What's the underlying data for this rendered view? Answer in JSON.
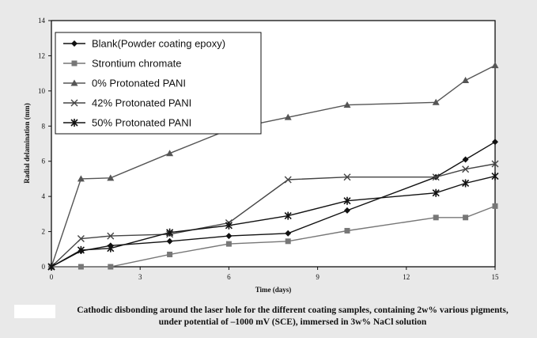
{
  "chart_data": {
    "type": "line",
    "title": "",
    "xlabel": "Time (days)",
    "ylabel": "Radial delamination (mm)",
    "xlim": [
      0,
      15
    ],
    "ylim": [
      0,
      14
    ],
    "xticks": [
      0,
      3,
      6,
      9,
      12,
      15
    ],
    "yticks": [
      0,
      2,
      4,
      6,
      8,
      10,
      12,
      14
    ],
    "grid": false,
    "legend_position": "top-left",
    "series": [
      {
        "name": "Blank(Powder coating epoxy)",
        "marker": "diamond",
        "color": "#111111",
        "x": [
          0,
          1,
          2,
          4,
          6,
          8,
          10,
          13,
          14,
          15
        ],
        "y": [
          0,
          0.9,
          1.2,
          1.45,
          1.75,
          1.9,
          3.2,
          5.1,
          6.1,
          7.1
        ]
      },
      {
        "name": "Strontium chromate",
        "marker": "square",
        "color": "#777777",
        "x": [
          0,
          1,
          2,
          4,
          6,
          8,
          10,
          13,
          14,
          15
        ],
        "y": [
          0,
          0,
          0,
          0.7,
          1.3,
          1.45,
          2.05,
          2.8,
          2.8,
          3.45
        ]
      },
      {
        "name": "0% Protonated PANI",
        "marker": "triangle",
        "color": "#555555",
        "x": [
          0,
          1,
          2,
          4,
          6,
          8,
          10,
          13,
          14,
          15
        ],
        "y": [
          0,
          5.0,
          5.05,
          6.45,
          7.8,
          8.5,
          9.2,
          9.35,
          10.6,
          11.45
        ]
      },
      {
        "name": "42% Protonated PANI",
        "marker": "x",
        "color": "#444444",
        "x": [
          0,
          1,
          2,
          4,
          6,
          8,
          10,
          13,
          14,
          15
        ],
        "y": [
          0,
          1.6,
          1.75,
          1.85,
          2.5,
          4.95,
          5.1,
          5.1,
          5.55,
          5.85
        ]
      },
      {
        "name": "50% Protonated PANI",
        "marker": "star",
        "color": "#111111",
        "x": [
          0,
          1,
          2,
          4,
          6,
          8,
          10,
          13,
          14,
          15
        ],
        "y": [
          0,
          0.95,
          1.05,
          1.95,
          2.35,
          2.9,
          3.75,
          4.2,
          4.75,
          5.15
        ]
      }
    ],
    "caption_lines": [
      "Cathodic disbonding around the laser hole for the different coating samples, containing 2w% various pigments,",
      "under potential of –1000 mV (SCE), immersed in 3w% NaCl solution"
    ]
  }
}
